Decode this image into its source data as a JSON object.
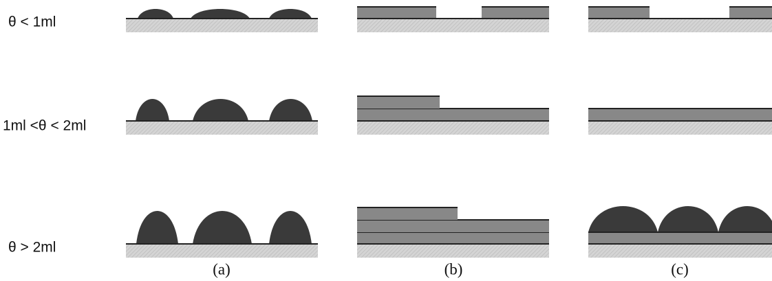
{
  "rows": [
    {
      "label": "θ < 1ml"
    },
    {
      "label": "1ml <θ < 2ml"
    },
    {
      "label": "θ > 2ml"
    }
  ],
  "columns": [
    {
      "label": "(a)"
    },
    {
      "label": "(b)"
    },
    {
      "label": "(c)"
    }
  ]
}
